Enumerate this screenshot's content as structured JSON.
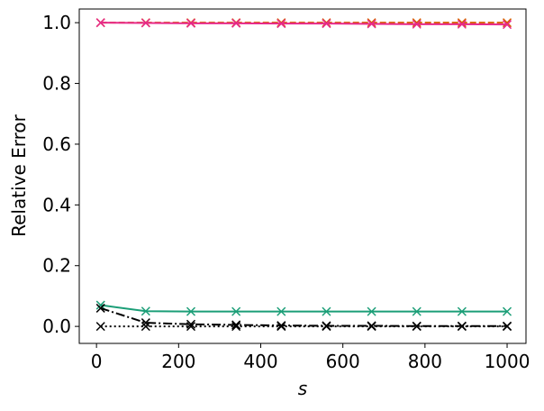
{
  "chart_data": {
    "type": "line",
    "xlabel": "s",
    "ylabel": "Relative Error",
    "x": [
      10,
      120,
      230,
      340,
      450,
      560,
      670,
      780,
      890,
      1000
    ],
    "series": [
      {
        "color": "#d95f02",
        "linestyle": "dashed",
        "marker": "x",
        "values": [
          1.0,
          1.0,
          1.0,
          1.0,
          1.0,
          1.0,
          1.0,
          1.0,
          1.0,
          1.0
        ]
      },
      {
        "color": "#e7298a",
        "linestyle": "solid",
        "marker": "x",
        "values": [
          1.0,
          0.999,
          0.998,
          0.998,
          0.997,
          0.997,
          0.996,
          0.995,
          0.995,
          0.994
        ]
      },
      {
        "color": "#1b9e77",
        "linestyle": "solid",
        "marker": "x",
        "values": [
          0.07,
          0.05,
          0.049,
          0.049,
          0.049,
          0.049,
          0.049,
          0.049,
          0.049,
          0.049
        ]
      },
      {
        "color": "#000000",
        "linestyle": "dashdot",
        "marker": "x",
        "values": [
          0.06,
          0.012,
          0.007,
          0.005,
          0.003,
          0.002,
          0.002,
          0.001,
          0.001,
          0.001
        ]
      },
      {
        "color": "#000000",
        "linestyle": "dotted",
        "marker": "x",
        "values": [
          0.0,
          0.0,
          0.0,
          0.0,
          0.0,
          0.0,
          0.0,
          0.0,
          0.0,
          0.0
        ]
      }
    ],
    "xlim": [
      -42,
      1046
    ],
    "ylim": [
      -0.056,
      1.045
    ],
    "xticks": [
      0,
      200,
      400,
      600,
      800,
      1000
    ],
    "yticks": [
      {
        "value": 0,
        "label": "0.0"
      },
      {
        "value": 0.2,
        "label": "0.2"
      },
      {
        "value": 0.4,
        "label": "0.4"
      },
      {
        "value": 0.6,
        "label": "0.6"
      },
      {
        "value": 0.8,
        "label": "0.8"
      },
      {
        "value": 1.0,
        "label": "1.0"
      }
    ]
  }
}
